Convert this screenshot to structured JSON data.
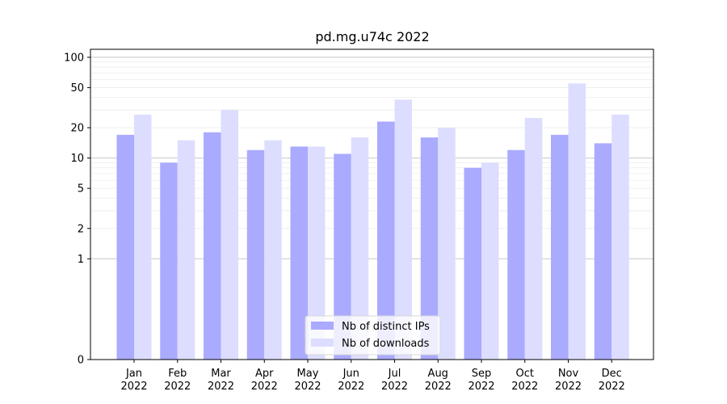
{
  "chart_data": {
    "type": "bar",
    "title": "pd.mg.u74c 2022",
    "xlabel": "",
    "ylabel": "",
    "y_scale": "symlog",
    "ylim": [
      0,
      120
    ],
    "yticks": [
      0,
      1,
      2,
      5,
      10,
      20,
      50,
      100
    ],
    "grid": "horizontal",
    "legend_position": "bottom-center",
    "categories": [
      [
        "Jan",
        "2022"
      ],
      [
        "Feb",
        "2022"
      ],
      [
        "Mar",
        "2022"
      ],
      [
        "Apr",
        "2022"
      ],
      [
        "May",
        "2022"
      ],
      [
        "Jun",
        "2022"
      ],
      [
        "Jul",
        "2022"
      ],
      [
        "Aug",
        "2022"
      ],
      [
        "Sep",
        "2022"
      ],
      [
        "Oct",
        "2022"
      ],
      [
        "Nov",
        "2022"
      ],
      [
        "Dec",
        "2022"
      ]
    ],
    "series": [
      {
        "name": "Nb of distinct IPs",
        "color": "#aaaaff",
        "values": [
          17,
          9,
          18,
          12,
          13,
          11,
          23,
          16,
          8,
          12,
          17,
          14
        ]
      },
      {
        "name": "Nb of downloads",
        "color": "#ddddff",
        "values": [
          27,
          15,
          30,
          15,
          13,
          16,
          38,
          20,
          9,
          25,
          55,
          27
        ]
      }
    ]
  }
}
